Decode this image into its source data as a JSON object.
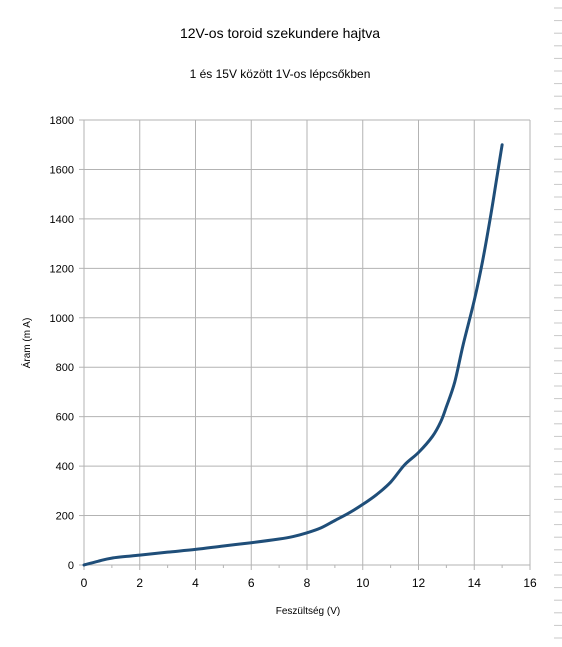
{
  "chart_data": {
    "type": "line",
    "title": "12V-os toroid szekundere hajtva",
    "subtitle": "1 és 15V között 1V-os lépcsőkben",
    "xlabel": "Feszültség (V)",
    "ylabel": "Áram (m A)",
    "xlim": [
      0,
      16
    ],
    "ylim": [
      0,
      1800
    ],
    "x_ticks": [
      0,
      2,
      4,
      6,
      8,
      10,
      12,
      14,
      16
    ],
    "y_ticks": [
      0,
      200,
      400,
      600,
      800,
      1000,
      1200,
      1400,
      1600,
      1800
    ],
    "grid": true,
    "legend": "none",
    "series_color": "#1f4e79",
    "series": [
      {
        "x": [
          0,
          0.5,
          1,
          2,
          3,
          4,
          5,
          6,
          7,
          7.5,
          8,
          8.5,
          9,
          9.5,
          10,
          10.5,
          11,
          11.5,
          12,
          12.5,
          12.8,
          13,
          13.3,
          13.6,
          14,
          14.3,
          14.6,
          14.8,
          15
        ],
        "y": [
          0,
          15,
          28,
          40,
          52,
          63,
          77,
          90,
          105,
          115,
          130,
          150,
          180,
          210,
          245,
          285,
          335,
          405,
          455,
          520,
          580,
          640,
          740,
          890,
          1070,
          1230,
          1420,
          1560,
          1700
        ]
      }
    ]
  }
}
